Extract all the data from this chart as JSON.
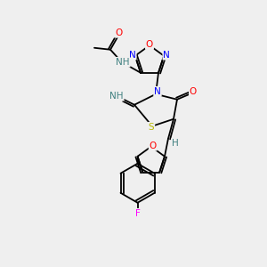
{
  "bg_color": "#efefef",
  "bond_color": "#000000",
  "atom_colors": {
    "O": "#ff0000",
    "N": "#0000ff",
    "S": "#b8b800",
    "F": "#ff00ff",
    "H": "#408080",
    "C": "#000000"
  },
  "figsize": [
    3.0,
    3.0
  ],
  "dpi": 100
}
